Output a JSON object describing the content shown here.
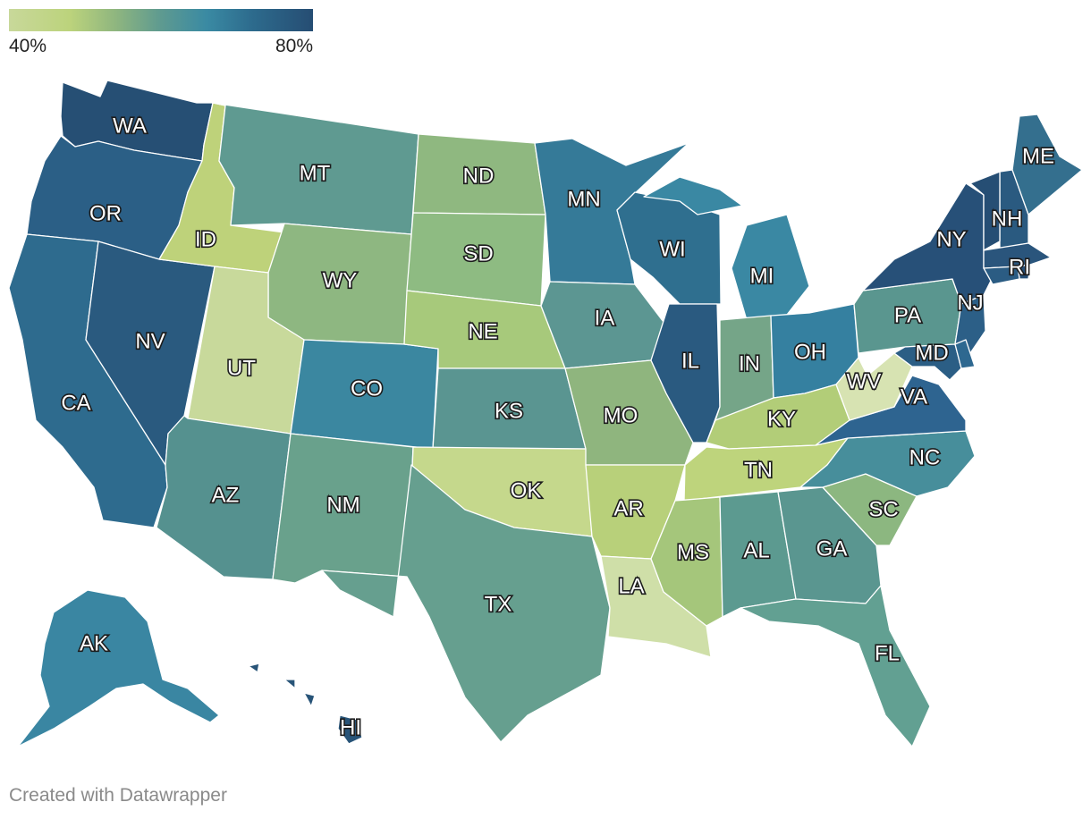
{
  "legend": {
    "min_label": "40%",
    "max_label": "80%"
  },
  "credit": "Created with Datawrapper",
  "states": [
    {
      "id": "WA",
      "label": "WA",
      "color": "#264f74"
    },
    {
      "id": "OR",
      "label": "OR",
      "color": "#2b5f86"
    },
    {
      "id": "CA",
      "label": "CA",
      "color": "#2e6b8e"
    },
    {
      "id": "NV",
      "label": "NV",
      "color": "#2a5a7f"
    },
    {
      "id": "ID",
      "label": "ID",
      "color": "#bed27a"
    },
    {
      "id": "MT",
      "label": "MT",
      "color": "#5f9a91"
    },
    {
      "id": "WY",
      "label": "WY",
      "color": "#8eb781"
    },
    {
      "id": "UT",
      "label": "UT",
      "color": "#c8d99b"
    },
    {
      "id": "AZ",
      "label": "AZ",
      "color": "#55918f"
    },
    {
      "id": "CO",
      "label": "CO",
      "color": "#3b87a0"
    },
    {
      "id": "NM",
      "label": "NM",
      "color": "#69a18c"
    },
    {
      "id": "ND",
      "label": "ND",
      "color": "#8fb880"
    },
    {
      "id": "SD",
      "label": "SD",
      "color": "#8ebb82"
    },
    {
      "id": "NE",
      "label": "NE",
      "color": "#a7c97b"
    },
    {
      "id": "KS",
      "label": "KS",
      "color": "#5a9591"
    },
    {
      "id": "OK",
      "label": "OK",
      "color": "#c5d88c"
    },
    {
      "id": "TX",
      "label": "TX",
      "color": "#669f8f"
    },
    {
      "id": "MN",
      "label": "MN",
      "color": "#357a98"
    },
    {
      "id": "IA",
      "label": "IA",
      "color": "#5c9692"
    },
    {
      "id": "MO",
      "label": "MO",
      "color": "#8fb57e"
    },
    {
      "id": "AR",
      "label": "AR",
      "color": "#b8d07a"
    },
    {
      "id": "LA",
      "label": "LA",
      "color": "#cfdfa8"
    },
    {
      "id": "WI",
      "label": "WI",
      "color": "#2f6f8f"
    },
    {
      "id": "IL",
      "label": "IL",
      "color": "#2a5a80"
    },
    {
      "id": "MI",
      "label": "MI",
      "color": "#3a88a3"
    },
    {
      "id": "IN",
      "label": "IN",
      "color": "#75a588"
    },
    {
      "id": "OH",
      "label": "OH",
      "color": "#3580a0"
    },
    {
      "id": "KY",
      "label": "KY",
      "color": "#b2cd78"
    },
    {
      "id": "TN",
      "label": "TN",
      "color": "#bed47c"
    },
    {
      "id": "MS",
      "label": "MS",
      "color": "#a5c67b"
    },
    {
      "id": "AL",
      "label": "AL",
      "color": "#5c9a90"
    },
    {
      "id": "GA",
      "label": "GA",
      "color": "#5a9690"
    },
    {
      "id": "FL",
      "label": "FL",
      "color": "#62a092"
    },
    {
      "id": "SC",
      "label": "SC",
      "color": "#8cb780"
    },
    {
      "id": "NC",
      "label": "NC",
      "color": "#478e9b"
    },
    {
      "id": "VA",
      "label": "VA",
      "color": "#2e6490"
    },
    {
      "id": "WV",
      "label": "WV",
      "color": "#d7e3b2"
    },
    {
      "id": "PA",
      "label": "PA",
      "color": "#5a968f"
    },
    {
      "id": "NY",
      "label": "NY",
      "color": "#275078"
    },
    {
      "id": "MD",
      "label": "MD",
      "color": "#2b5e85"
    },
    {
      "id": "NJ",
      "label": "NJ",
      "color": "#2c5f87"
    },
    {
      "id": "NH",
      "label": "NH",
      "color": "#2a5a80"
    },
    {
      "id": "VT",
      "label": "",
      "color": "#264e74"
    },
    {
      "id": "ME",
      "label": "ME",
      "color": "#346f8e"
    },
    {
      "id": "MA",
      "label": "",
      "color": "#2a557c"
    },
    {
      "id": "RI",
      "label": "RI",
      "color": "#275078"
    },
    {
      "id": "CT",
      "label": "",
      "color": "#2b5c83"
    },
    {
      "id": "DE",
      "label": "",
      "color": "#2e6890"
    },
    {
      "id": "AK",
      "label": "AK",
      "color": "#3a86a2"
    },
    {
      "id": "HI",
      "label": "HI",
      "color": "#285478"
    }
  ]
}
